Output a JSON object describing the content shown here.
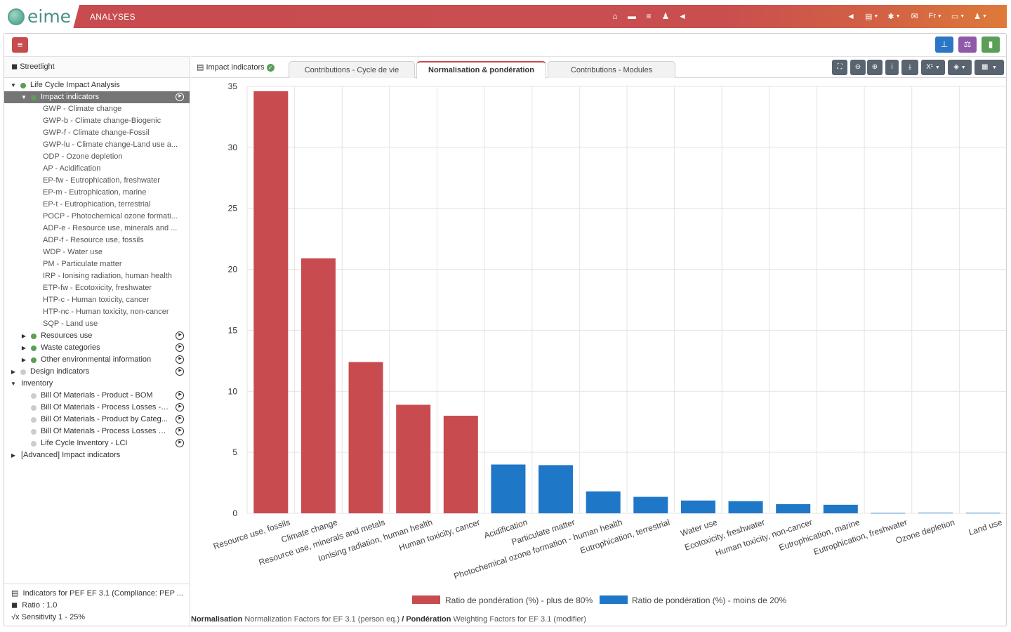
{
  "header": {
    "logo_text": "eime",
    "section": "ANALYSES",
    "center_icons": [
      "home-icon",
      "archive-icon",
      "database-icon",
      "users-gear-icon",
      "bullhorn-icon"
    ],
    "right_items": [
      {
        "icon": "bullhorn-icon",
        "label": ""
      },
      {
        "icon": "clipboard-icon",
        "label": ""
      },
      {
        "icon": "bug-icon",
        "label": ""
      },
      {
        "icon": "envelope-icon",
        "label": ""
      },
      {
        "icon": "language",
        "label": "Fr"
      },
      {
        "icon": "inbox-icon",
        "label": ""
      },
      {
        "icon": "user-gear-icon",
        "label": ""
      }
    ],
    "accent": "#c84b4f"
  },
  "toolbar": {
    "menu_icon": "bars-icon",
    "right_buttons": [
      {
        "icon": "sitemap-icon",
        "color": "#2b77c5"
      },
      {
        "icon": "balance-scale-icon",
        "color": "#8e5aa8"
      },
      {
        "icon": "trash-icon",
        "color": "#5a9e57"
      }
    ]
  },
  "sidebar": {
    "title": "Streetlight",
    "tree": [
      {
        "level": 0,
        "expand": "open",
        "dot": "#5a9e57",
        "label": "Life Cycle Impact Analysis",
        "play": false
      },
      {
        "level": 1,
        "expand": "open",
        "dot": "#5a9e57",
        "label": "Impact indicators",
        "play": true,
        "selected": true
      },
      {
        "level": 2,
        "label": "GWP - Climate change"
      },
      {
        "level": 2,
        "label": "GWP-b - Climate change-Biogenic"
      },
      {
        "level": 2,
        "label": "GWP-f - Climate change-Fossil"
      },
      {
        "level": 2,
        "label": "GWP-lu - Climate change-Land use a..."
      },
      {
        "level": 2,
        "label": "ODP - Ozone depletion"
      },
      {
        "level": 2,
        "label": "AP - Acidification"
      },
      {
        "level": 2,
        "label": "EP-fw - Eutrophication, freshwater"
      },
      {
        "level": 2,
        "label": "EP-m - Eutrophication, marine"
      },
      {
        "level": 2,
        "label": "EP-t - Eutrophication, terrestrial"
      },
      {
        "level": 2,
        "label": "POCP - Photochemical ozone formati..."
      },
      {
        "level": 2,
        "label": "ADP-e - Resource use, minerals and ..."
      },
      {
        "level": 2,
        "label": "ADP-f - Resource use, fossils"
      },
      {
        "level": 2,
        "label": "WDP - Water use"
      },
      {
        "level": 2,
        "label": "PM - Particulate matter"
      },
      {
        "level": 2,
        "label": "IRP - Ionising radiation, human health"
      },
      {
        "level": 2,
        "label": "ETP-fw - Ecotoxicity, freshwater"
      },
      {
        "level": 2,
        "label": "HTP-c - Human toxicity, cancer"
      },
      {
        "level": 2,
        "label": "HTP-nc - Human toxicity, non-cancer"
      },
      {
        "level": 2,
        "label": "SQP - Land use"
      },
      {
        "level": 1,
        "expand": "closed",
        "dot": "#5a9e57",
        "label": "Resources use",
        "play": true
      },
      {
        "level": 1,
        "expand": "closed",
        "dot": "#5a9e57",
        "label": "Waste categories",
        "play": true
      },
      {
        "level": 1,
        "expand": "closed",
        "dot": "#5a9e57",
        "label": "Other environmental information",
        "play": true
      },
      {
        "level": 0,
        "expand": "closed",
        "dot": "#cccccc",
        "label": "Design indicators",
        "play": true
      },
      {
        "level": 0,
        "expand": "open",
        "label": "Inventory",
        "play": false
      },
      {
        "level": 1,
        "dot": "#cccccc",
        "label": "Bill Of Materials - Product - BOM",
        "play": true
      },
      {
        "level": 1,
        "dot": "#cccccc",
        "label": "Bill Of Materials - Process Losses - ...",
        "play": true
      },
      {
        "level": 1,
        "dot": "#cccccc",
        "label": "Bill Of Materials - Product by Categ...",
        "play": true
      },
      {
        "level": 1,
        "dot": "#cccccc",
        "label": "Bill Of Materials - Process Losses by...",
        "play": true
      },
      {
        "level": 1,
        "dot": "#cccccc",
        "label": "Life Cycle Inventory - LCI",
        "play": true
      },
      {
        "level": 0,
        "expand": "closed",
        "label": "[Advanced] Impact indicators",
        "play": false
      }
    ],
    "footer": [
      {
        "icon": "document-icon",
        "text": "Indicators for PEF EF 3.1 (Compliance: PEP ..."
      },
      {
        "icon": "cube-icon",
        "text": "Ratio : 1.0"
      },
      {
        "icon": "sqrt-icon",
        "text": "Sensitivity 1 - 25%"
      }
    ]
  },
  "main": {
    "panel_label": "Impact indicators",
    "tabs": [
      {
        "label": "Contributions - Cycle de vie",
        "active": false
      },
      {
        "label": "Normalisation & pondération",
        "active": true
      },
      {
        "label": "Contributions - Modules",
        "active": false
      }
    ],
    "tool_buttons": [
      "expand-icon",
      "zoom-out-icon",
      "zoom-in-icon",
      "info-icon",
      "download-icon",
      "exponent-icon",
      "layers-icon",
      "table-icon"
    ],
    "exponent_label": "X¹",
    "bottom_note": {
      "norm_label": "Normalisation",
      "norm_text": "Normalization Factors for EF 3.1 (person eq.)",
      "sep": "/",
      "pond_label": "Pondération",
      "pond_text": "Weighting Factors for EF 3.1 (modifier)"
    }
  },
  "chart_data": {
    "type": "bar",
    "categories": [
      "Resource use, fossils",
      "Climate change",
      "Resource use, minerals and metals",
      "Ionising radiation, human health",
      "Human toxicity, cancer",
      "Acidification",
      "Particulate matter",
      "Photochemical ozone formation - human health",
      "Eutrophication, terrestrial",
      "Water use",
      "Ecotoxicity, freshwater",
      "Human toxicity, non-cancer",
      "Eutrophication, marine",
      "Eutrophication, freshwater",
      "Ozone depletion",
      "Land use"
    ],
    "values": [
      34.6,
      20.9,
      12.4,
      8.9,
      8.0,
      4.0,
      3.95,
      1.8,
      1.35,
      1.05,
      1.0,
      0.75,
      0.7,
      0.03,
      0.05,
      0.04
    ],
    "groups": [
      0,
      0,
      0,
      0,
      0,
      1,
      1,
      1,
      1,
      1,
      1,
      1,
      1,
      1,
      1,
      1
    ],
    "series": [
      {
        "name": "Ratio de pondération (%) - plus de 80%",
        "color": "#c84b4f"
      },
      {
        "name": "Ratio de pondération (%) - moins de 20%",
        "color": "#1f77c8"
      }
    ],
    "yticks": [
      "0",
      "5",
      "10",
      "15",
      "20",
      "25",
      "30",
      "35"
    ],
    "ylim": [
      0,
      35
    ],
    "grid": true,
    "legend": "bottom-center",
    "title": "",
    "xlabel": "",
    "ylabel": ""
  }
}
